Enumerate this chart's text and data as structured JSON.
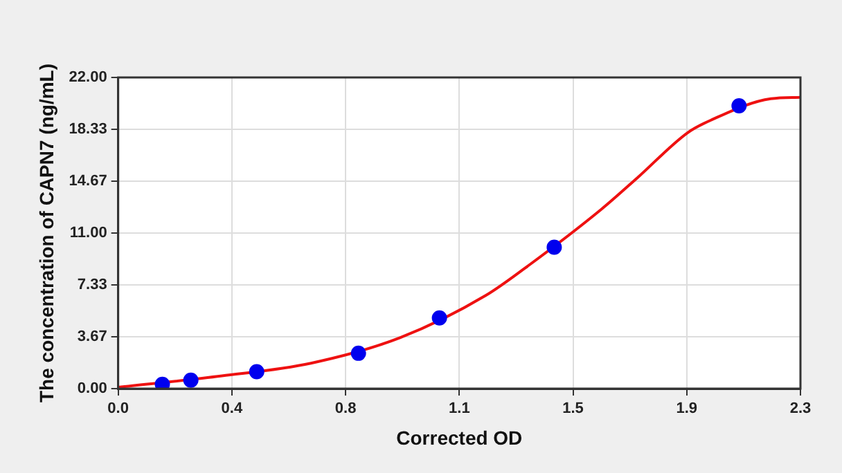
{
  "chart_data": {
    "type": "scatter",
    "xlabel": "Corrected OD",
    "ylabel": "The concentration of CAPN7 (ng/mL)",
    "xlim": [
      0,
      2.3
    ],
    "xticks": [
      {
        "value": 0,
        "label": "0.0"
      },
      {
        "value": 0.3833,
        "label": "0.4"
      },
      {
        "value": 0.7667,
        "label": "0.8"
      },
      {
        "value": 1.15,
        "label": "1.1"
      },
      {
        "value": 1.5333,
        "label": "1.5"
      },
      {
        "value": 1.9167,
        "label": "1.9"
      },
      2.3
    ],
    "ylim": [
      0,
      22
    ],
    "yticks": [
      {
        "value": 0,
        "label": "0.00"
      },
      3.67,
      7.33,
      {
        "value": 11,
        "label": "11.00"
      },
      14.67,
      18.33,
      {
        "value": 22,
        "label": "22.00"
      }
    ],
    "grid": true,
    "legend": false,
    "series": [
      {
        "type": "scatter",
        "color": "#0000ee",
        "marker": "circle",
        "x": [
          0.149,
          0.245,
          0.467,
          0.81,
          1.083,
          1.47,
          2.093
        ],
        "values": [
          0.3,
          0.6,
          1.2,
          2.5,
          5,
          10,
          20
        ]
      },
      {
        "type": "line",
        "color": "#ee1111",
        "marker": "none",
        "line_style": "solid",
        "x": [
          0,
          0.35,
          0.65,
          0.95,
          1.24,
          1.37,
          1.63,
          1.75,
          1.92,
          2.0,
          2.2,
          2.3
        ],
        "values": [
          0.1,
          0.9,
          1.8,
          3.6,
          6.6,
          8.5,
          12.7,
          14.9,
          18.1,
          19.0,
          20.5,
          20.6
        ]
      }
    ]
  }
}
